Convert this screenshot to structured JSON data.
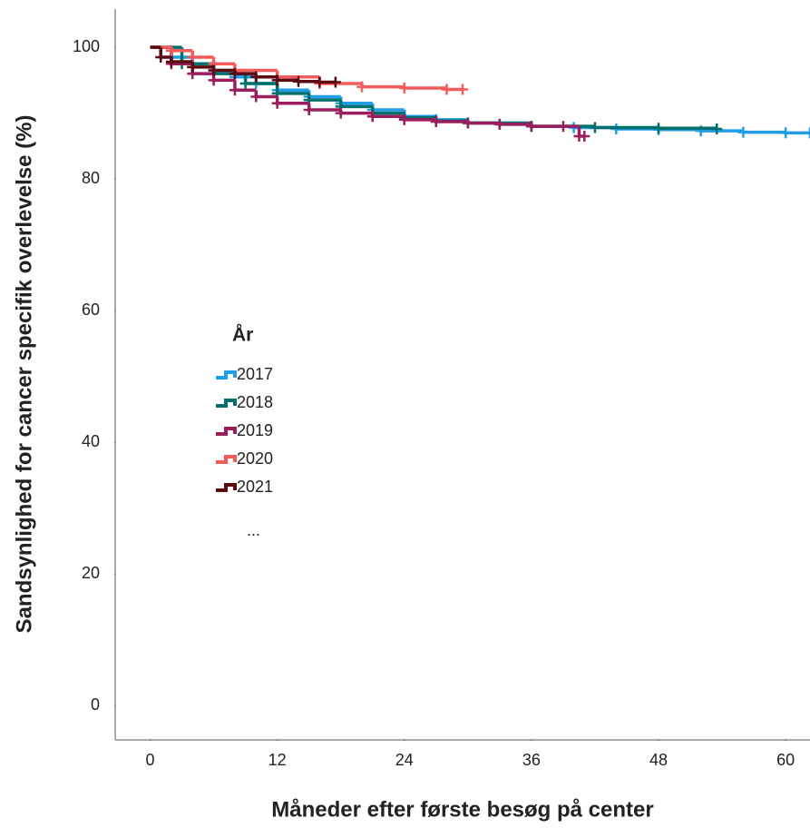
{
  "chart_data": {
    "type": "line",
    "step": true,
    "x_label": "Måneder efter første besøg på center",
    "y_label": "Sandsynlighed for cancer specifik overlevelse (%)",
    "xlim": [
      -3.3,
      62.3
    ],
    "ylim": [
      -5.2,
      105.8
    ],
    "xticks": [
      0,
      12,
      24,
      36,
      48,
      60
    ],
    "yticks": [
      0,
      20,
      40,
      60,
      80,
      100
    ],
    "grid": false,
    "censor_marks": true,
    "legend_title": "År",
    "legend_more": "...",
    "series": [
      {
        "name": "2017",
        "color": "#1f9ee6",
        "x": [
          0,
          2,
          4,
          6,
          8,
          10,
          12,
          15,
          18,
          21,
          24,
          27,
          30,
          33,
          36,
          40,
          44,
          48,
          52,
          56,
          60,
          62.3
        ],
        "values": [
          100,
          98.5,
          97.5,
          96.5,
          95.5,
          94.5,
          93.5,
          92.5,
          91.5,
          90.5,
          89.5,
          89,
          88.5,
          88.3,
          88,
          87.8,
          87.6,
          87.5,
          87.3,
          87.1,
          87,
          87
        ]
      },
      {
        "name": "2018",
        "color": "#00706e",
        "x": [
          0,
          3,
          6,
          9,
          12,
          15,
          18,
          21,
          24,
          27,
          30,
          36,
          42,
          48,
          53.5
        ],
        "values": [
          100,
          97.5,
          96,
          94.5,
          93,
          92,
          91,
          90,
          89.3,
          88.8,
          88.5,
          88,
          87.8,
          87.7,
          87.6
        ]
      },
      {
        "name": "2019",
        "color": "#9c1d5d",
        "x": [
          0,
          2,
          4,
          6,
          8,
          10,
          12,
          15,
          18,
          21,
          24,
          27,
          30,
          33,
          36,
          39,
          40.5,
          41
        ],
        "values": [
          100,
          97.5,
          96,
          95,
          93.5,
          92.5,
          91.5,
          90.5,
          90,
          89.5,
          89,
          88.7,
          88.5,
          88.3,
          88,
          88,
          86.5,
          86.5
        ]
      },
      {
        "name": "2020",
        "color": "#f55b5b",
        "x": [
          0,
          2,
          4,
          6,
          8,
          12,
          16,
          20,
          24,
          28,
          29.5
        ],
        "values": [
          100,
          99.5,
          98.5,
          97.5,
          96.5,
          95.5,
          94.5,
          94,
          93.8,
          93.6,
          93.6
        ]
      },
      {
        "name": "2021",
        "color": "#5a0a10",
        "x": [
          0,
          1,
          2,
          4,
          6,
          8,
          10,
          12,
          14,
          16,
          17.5
        ],
        "values": [
          100,
          98.5,
          97.8,
          97,
          96.5,
          96,
          95.5,
          95,
          94.8,
          94.7,
          94.7
        ]
      }
    ]
  }
}
